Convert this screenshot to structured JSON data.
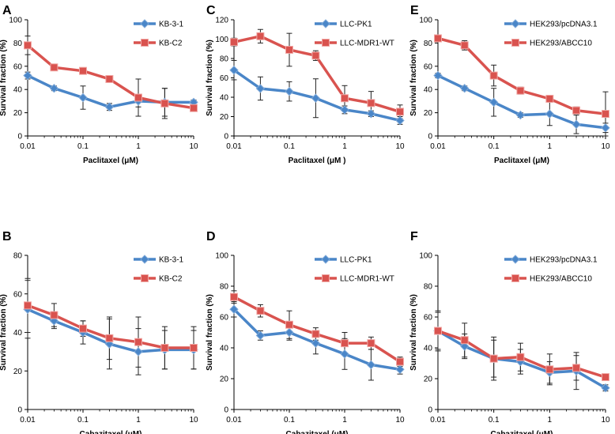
{
  "chart_data": [
    {
      "panel": "A",
      "type": "line",
      "title": "",
      "xlabel": "Paclitaxel (μM)",
      "ylabel": "Survival fraction (%)",
      "xscale": "log",
      "xlim": [
        0.01,
        10
      ],
      "ylim": [
        0,
        100
      ],
      "yticks": [
        0,
        20,
        40,
        60,
        80,
        100
      ],
      "xticks": [
        0.01,
        0.1,
        1,
        10
      ],
      "xtick_labels": [
        "0.01",
        "0.1",
        "1",
        "10"
      ],
      "x": [
        0.01,
        0.03,
        0.1,
        0.3,
        1,
        3,
        10
      ],
      "legend_position": "top-right",
      "series": [
        {
          "name": "KB-3-1",
          "color": "#4a86c8",
          "marker": "diamond",
          "values": [
            52,
            41,
            33,
            25,
            30,
            29,
            29
          ],
          "errors": [
            3,
            2,
            10,
            3,
            5,
            12,
            2
          ]
        },
        {
          "name": "KB-C2",
          "color": "#d9534f",
          "marker": "square",
          "values": [
            78,
            59,
            56,
            49,
            33,
            28,
            24
          ],
          "errors": [
            8,
            2,
            2,
            2,
            16,
            13,
            2
          ]
        }
      ]
    },
    {
      "panel": "C",
      "type": "line",
      "title": "",
      "xlabel": "Paclitaxel (μM )",
      "ylabel": "Survival fraction (%)",
      "xscale": "log",
      "xlim": [
        0.01,
        10
      ],
      "ylim": [
        0,
        120
      ],
      "yticks": [
        0,
        20,
        40,
        60,
        80,
        100,
        120
      ],
      "xticks": [
        0.01,
        0.1,
        1,
        10
      ],
      "xtick_labels": [
        "0.01",
        "0.1",
        "1",
        "10"
      ],
      "x": [
        0.01,
        0.03,
        0.1,
        0.3,
        1,
        3,
        10
      ],
      "legend_position": "top-right",
      "series": [
        {
          "name": "LLC-PK1",
          "color": "#4a86c8",
          "marker": "diamond",
          "values": [
            68,
            49,
            46,
            39,
            27,
            23,
            16
          ],
          "errors": [
            10,
            12,
            10,
            20,
            4,
            3,
            4
          ]
        },
        {
          "name": "LLC-MDR1-WT",
          "color": "#d9534f",
          "marker": "square",
          "values": [
            97,
            103,
            89,
            83,
            39,
            34,
            25
          ],
          "errors": [
            4,
            7,
            17,
            5,
            13,
            12,
            7
          ]
        }
      ]
    },
    {
      "panel": "E",
      "type": "line",
      "title": "",
      "xlabel": "Paclitaxel (μM)",
      "ylabel": "Survival fraction (%)",
      "xscale": "log",
      "xlim": [
        0.01,
        10
      ],
      "ylim": [
        0,
        100
      ],
      "yticks": [
        0,
        20,
        40,
        60,
        80,
        100
      ],
      "xticks": [
        0.01,
        0.1,
        1,
        10
      ],
      "xtick_labels": [
        "0.01",
        "0.1",
        "1",
        "10"
      ],
      "x": [
        0.01,
        0.03,
        0.1,
        0.3,
        1,
        3,
        10
      ],
      "legend_position": "top-right",
      "series": [
        {
          "name": "HEK293/pcDNA3.1",
          "color": "#4a86c8",
          "marker": "diamond",
          "values": [
            52,
            41,
            29,
            18,
            19,
            10,
            7
          ],
          "errors": [
            2,
            2,
            12,
            2,
            10,
            8,
            4
          ]
        },
        {
          "name": "HEK293/ABCC10",
          "color": "#d9534f",
          "marker": "square",
          "values": [
            84,
            78,
            52,
            39,
            32,
            22,
            19
          ],
          "errors": [
            2,
            4,
            9,
            3,
            2,
            3,
            19
          ]
        }
      ]
    },
    {
      "panel": "B",
      "type": "line",
      "title": "",
      "xlabel": "Cabazitaxel (μM)",
      "ylabel": "Survival fraction (%)",
      "xscale": "log",
      "xlim": [
        0.01,
        10
      ],
      "ylim": [
        0,
        80
      ],
      "yticks": [
        0,
        20,
        40,
        60,
        80
      ],
      "xticks": [
        0.01,
        0.1,
        1,
        10
      ],
      "xtick_labels": [
        "0.01",
        "0.1",
        "1",
        "10"
      ],
      "x": [
        0.01,
        0.03,
        0.1,
        0.3,
        1,
        3,
        10
      ],
      "legend_position": "top-right",
      "series": [
        {
          "name": "KB-3-1",
          "color": "#4a86c8",
          "marker": "diamond",
          "values": [
            52,
            46,
            40,
            34,
            30,
            31,
            31
          ],
          "errors": [
            15,
            4,
            6,
            13,
            12,
            10,
            10
          ]
        },
        {
          "name": "KB-C2",
          "color": "#d9534f",
          "marker": "square",
          "values": [
            54,
            49,
            42,
            37,
            35,
            32,
            32
          ],
          "errors": [
            14,
            6,
            4,
            11,
            13,
            11,
            11
          ]
        }
      ]
    },
    {
      "panel": "D",
      "type": "line",
      "title": "",
      "xlabel": "Cabazitaxel (μM)",
      "ylabel": "Survival fraction (%)",
      "xscale": "log",
      "xlim": [
        0.01,
        10
      ],
      "ylim": [
        0,
        100
      ],
      "yticks": [
        0,
        20,
        40,
        60,
        80,
        100
      ],
      "xticks": [
        0.01,
        0.1,
        1,
        10
      ],
      "xtick_labels": [
        "0.01",
        "0.1",
        "1",
        "10"
      ],
      "x": [
        0.01,
        0.03,
        0.1,
        0.3,
        1,
        3,
        10
      ],
      "legend_position": "top-right",
      "series": [
        {
          "name": "LLC-PK1",
          "color": "#4a86c8",
          "marker": "diamond",
          "values": [
            65,
            48,
            50,
            43,
            36,
            29,
            26
          ],
          "errors": [
            5,
            3,
            5,
            7,
            10,
            10,
            3
          ]
        },
        {
          "name": "LLC-MDR1-WT",
          "color": "#d9534f",
          "marker": "square",
          "values": [
            73,
            64,
            55,
            49,
            43,
            43,
            31
          ],
          "errors": [
            4,
            4,
            9,
            4,
            7,
            4,
            3
          ]
        }
      ]
    },
    {
      "panel": "F",
      "type": "line",
      "title": "",
      "xlabel": "Cabazitaxel (μM)",
      "ylabel": "Survival fraction (%)",
      "xscale": "log",
      "xlim": [
        0.01,
        10
      ],
      "ylim": [
        0,
        100
      ],
      "yticks": [
        0,
        20,
        40,
        60,
        80,
        100
      ],
      "xticks": [
        0.01,
        0.1,
        1,
        10
      ],
      "xtick_labels": [
        "0.01",
        "0.1",
        "1",
        "10"
      ],
      "x": [
        0.01,
        0.03,
        0.1,
        0.3,
        1,
        3,
        10
      ],
      "legend_position": "top-right",
      "series": [
        {
          "name": "HEK293/pcDNA3.1",
          "color": "#4a86c8",
          "marker": "diamond",
          "values": [
            51,
            41,
            33,
            31,
            24,
            25,
            14
          ],
          "errors": [
            12,
            8,
            14,
            8,
            7,
            12,
            2
          ]
        },
        {
          "name": "HEK293/ABCC10",
          "color": "#d9534f",
          "marker": "square",
          "values": [
            51,
            45,
            33,
            34,
            26,
            27,
            21
          ],
          "errors": [
            13,
            11,
            12,
            9,
            10,
            8,
            2
          ]
        }
      ]
    }
  ]
}
